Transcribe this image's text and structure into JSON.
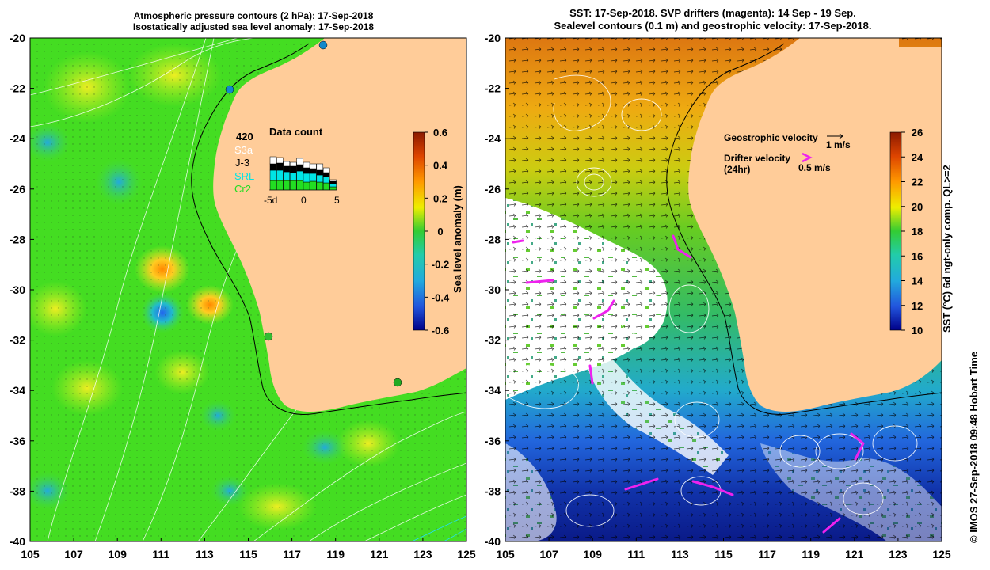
{
  "left_panel": {
    "title_line1": "Atmospheric pressure contours (2 hPa): 17-Sep-2018",
    "title_line2": "Isostatically adjusted sea level anomaly: 17-Sep-2018",
    "y_ticks": [
      "-20",
      "-22",
      "-24",
      "-26",
      "-28",
      "-30",
      "-32",
      "-34",
      "-36",
      "-38",
      "-40"
    ],
    "x_ticks": [
      "105",
      "107",
      "109",
      "111",
      "113",
      "115",
      "117",
      "119",
      "121",
      "123",
      "125"
    ],
    "inset": {
      "title": "Data count",
      "total": "420",
      "missions": [
        {
          "name": "S3a",
          "color": "#ffffff"
        },
        {
          "name": "J-3",
          "color": "#000000"
        },
        {
          "name": "SRL",
          "color": "#00e5e5"
        },
        {
          "name": "Cr2",
          "color": "#22dd22"
        }
      ],
      "x_ticks": [
        "-5d",
        "0",
        "5"
      ]
    },
    "colorbar": {
      "label": "Sea level anomaly (m)",
      "ticks": [
        "0.6",
        "0.4",
        "0.2",
        "0",
        "-0.2",
        "-0.4",
        "-0.6"
      ]
    }
  },
  "right_panel": {
    "title_line1": "SST: 17-Sep-2018. SVP drifters (magenta): 14 Sep - 19 Sep.",
    "title_line2": "Sealevel contours (0.1 m) and geostrophic velocity: 17-Sep-2018.",
    "y_ticks": [
      "-20",
      "-22",
      "-24",
      "-26",
      "-28",
      "-30",
      "-32",
      "-34",
      "-36",
      "-38",
      "-40"
    ],
    "x_ticks": [
      "105",
      "107",
      "109",
      "111",
      "113",
      "115",
      "117",
      "119",
      "121",
      "123",
      "125"
    ],
    "legend": {
      "geo_label": "Geostrophic velocity",
      "geo_scale": "1 m/s",
      "drifter_label_1": "Drifter velocity",
      "drifter_label_2": "(24hr)",
      "drifter_scale": "0.5 m/s"
    },
    "colorbar": {
      "label": "SST (°C) 6d ngt-only comp. QL>=2",
      "ticks": [
        "26",
        "24",
        "22",
        "20",
        "18",
        "16",
        "14",
        "12",
        "10"
      ]
    }
  },
  "credit": "© IMOS 27-Sep-2018 09:48 Hobart Time",
  "colors": {
    "land": "#ffcc99",
    "sla_field": "#44dd22",
    "drifter": "#ee22ee"
  }
}
